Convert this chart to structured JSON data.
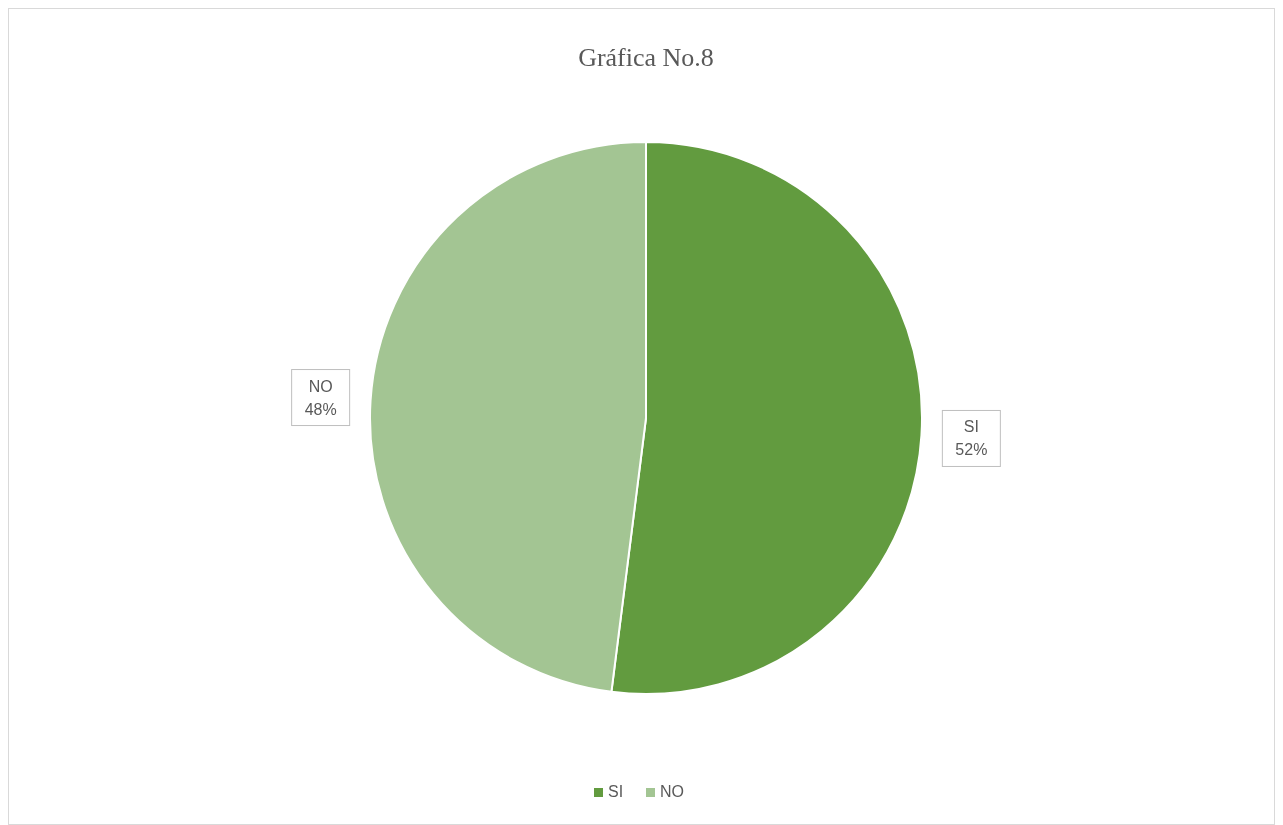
{
  "chart_data": {
    "type": "pie",
    "title": "Gráfica No.8",
    "categories": [
      "SI",
      "NO"
    ],
    "values": [
      52,
      48
    ],
    "colors": [
      "#629b3f",
      "#a3c593"
    ],
    "value_labels": [
      "52%",
      "48%"
    ],
    "legend": "bottom"
  }
}
